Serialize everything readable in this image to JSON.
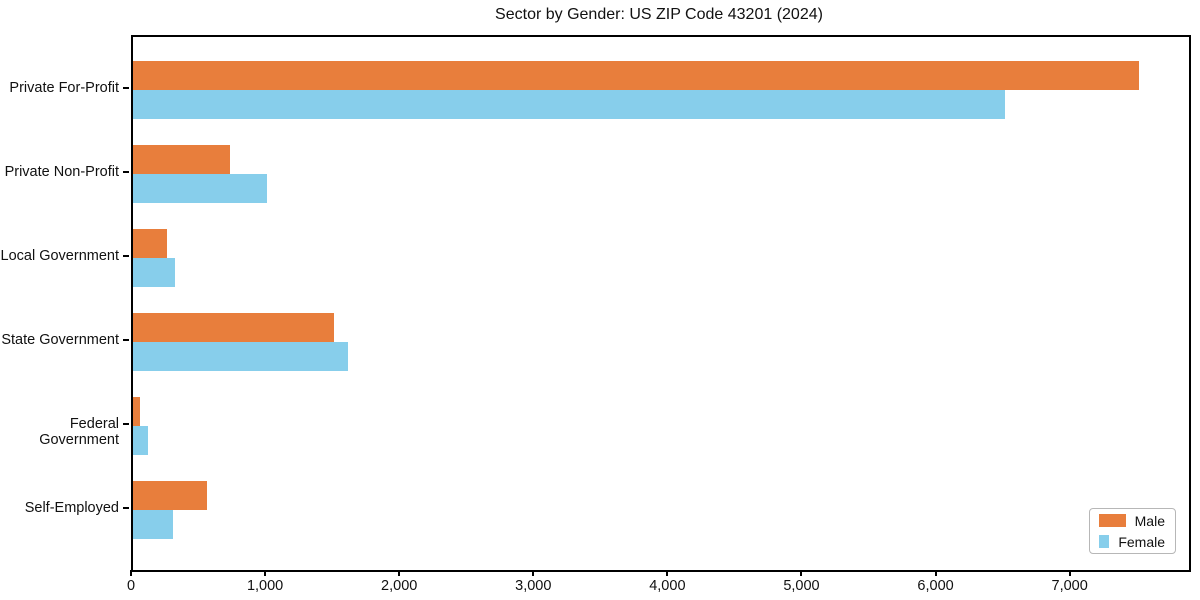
{
  "title": "Sector by Gender: US ZIP Code 43201 (2024)",
  "colors": {
    "male": "#e87e3c",
    "female": "#87ceeb",
    "axis": "#000000",
    "background": "#ffffff",
    "legend_border": "#b7b7b7"
  },
  "chart_data": {
    "type": "bar",
    "orientation": "horizontal",
    "title": "Sector by Gender: US ZIP Code 43201 (2024)",
    "categories": [
      "Private For-Profit",
      "Private Non-Profit",
      "Local Government",
      "State Government",
      "Federal Government",
      "Self-Employed"
    ],
    "series": [
      {
        "name": "Male",
        "color": "#e87e3c",
        "values": [
          7500,
          720,
          250,
          1500,
          50,
          550
        ]
      },
      {
        "name": "Female",
        "color": "#87ceeb",
        "values": [
          6500,
          1000,
          315,
          1600,
          110,
          300
        ]
      }
    ],
    "xlabel": "",
    "ylabel": "",
    "xlim": [
      0,
      7875
    ],
    "x_ticks": [
      0,
      1000,
      2000,
      3000,
      4000,
      5000,
      6000,
      7000
    ],
    "x_tick_labels": [
      "0",
      "1,000",
      "2,000",
      "3,000",
      "4,000",
      "5,000",
      "6,000",
      "7,000"
    ],
    "grid": false,
    "legend_position": "lower right"
  }
}
